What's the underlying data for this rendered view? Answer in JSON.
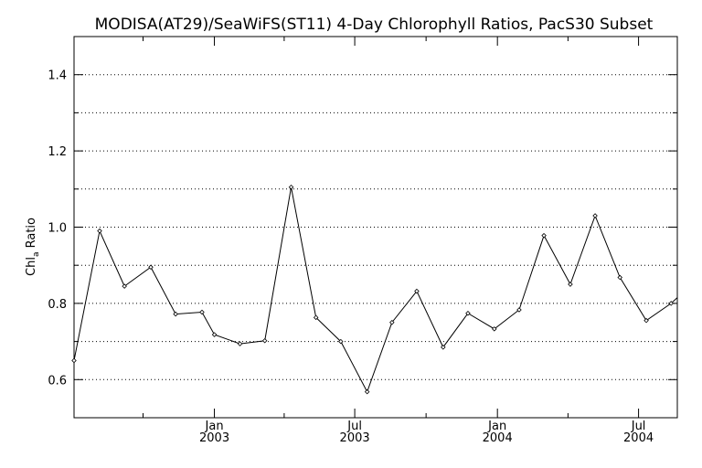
{
  "chart_data": {
    "type": "line",
    "title": "MODISA(AT29)/SeaWiFS(ST11) 4-Day Chlorophyll Ratios, PacS30 Subset",
    "xlabel": "",
    "ylabel_main": "Chl",
    "ylabel_sub": "a",
    "ylabel_tail": " Ratio",
    "xlim": [
      "2002-07-04",
      "2004-08-20"
    ],
    "ylim": [
      0.5,
      1.5
    ],
    "yticks": [
      0.6,
      0.8,
      1.0,
      1.2,
      1.4
    ],
    "ytick_labels": [
      "0.6",
      "0.8",
      "1.0",
      "1.2",
      "1.4"
    ],
    "yminor": [
      0.7,
      0.9,
      1.1,
      1.3
    ],
    "grid": true,
    "xmajor_ticks": [
      {
        "date": "2003-01-01",
        "line1": "Jan",
        "line2": "2003"
      },
      {
        "date": "2003-07-01",
        "line1": "Jul",
        "line2": "2003"
      },
      {
        "date": "2004-01-01",
        "line1": "Jan",
        "line2": "2004"
      },
      {
        "date": "2004-07-01",
        "line1": "Jul",
        "line2": "2004"
      }
    ],
    "xminor_ticks": [
      "2002-10-01",
      "2003-04-01",
      "2003-10-01",
      "2004-04-01"
    ],
    "series": [
      {
        "x": [
          "2002-07-04",
          "2002-08-06",
          "2002-09-07",
          "2002-10-11",
          "2002-11-12",
          "2002-12-16",
          "2003-01-01",
          "2003-02-03",
          "2003-03-07",
          "2003-04-10",
          "2003-05-12",
          "2003-06-13",
          "2003-07-17",
          "2003-08-18",
          "2003-09-19",
          "2003-10-23",
          "2003-11-24",
          "2003-12-28",
          "2004-01-29",
          "2004-03-01",
          "2004-04-04",
          "2004-05-06",
          "2004-06-07",
          "2004-07-11",
          "2004-08-12",
          "2004-08-20"
        ],
        "values": [
          0.65,
          0.99,
          0.845,
          0.895,
          0.772,
          0.777,
          0.718,
          0.694,
          0.702,
          1.105,
          0.763,
          0.7,
          0.568,
          0.75,
          0.832,
          0.685,
          0.774,
          0.733,
          0.783,
          0.978,
          0.85,
          1.03,
          0.868,
          0.755,
          0.8,
          0.815
        ]
      }
    ]
  }
}
